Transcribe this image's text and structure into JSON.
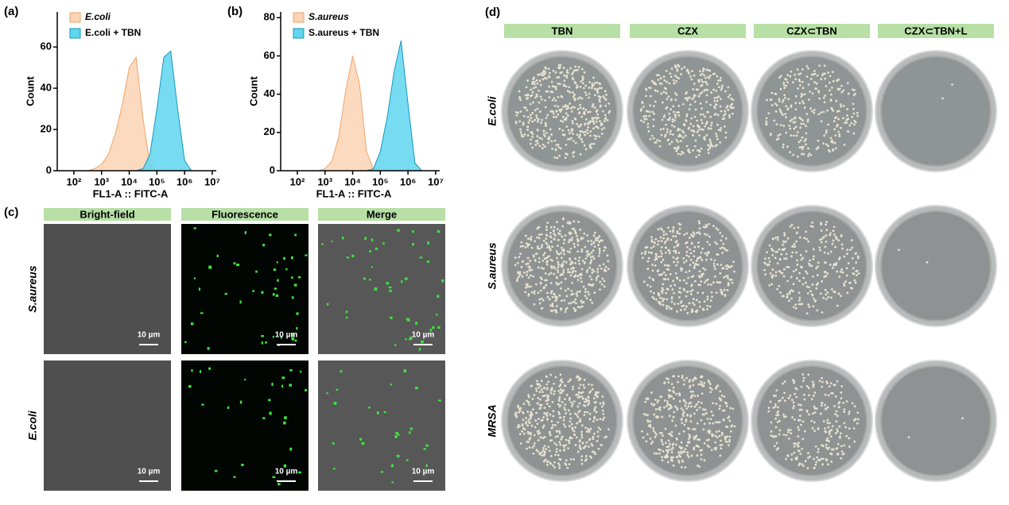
{
  "chart_data": [
    {
      "type": "area",
      "panel": "(a)",
      "xlabel": "FL1-A :: FITC-A",
      "ylabel": "Count",
      "xscale": "log",
      "legend": "upper left",
      "xlim": [
        25,
        14000000
      ],
      "ylim": [
        0,
        77
      ],
      "xticks": [
        {
          "value": 100,
          "label": "10²"
        },
        {
          "value": 1000,
          "label": "10³"
        },
        {
          "value": 10000,
          "label": "10⁴"
        },
        {
          "value": 100000,
          "label": "10⁵"
        },
        {
          "value": 1000000,
          "label": "10⁶"
        },
        {
          "value": 10000000,
          "label": "10⁷"
        }
      ],
      "yticks": [
        0,
        20,
        40,
        60
      ],
      "x": [
        316,
        562,
        1000,
        1778,
        3162,
        5623,
        10000,
        17783,
        31623,
        56234,
        100000,
        177828,
        316228,
        562341,
        1000000,
        1778279,
        3162278
      ],
      "series": [
        {
          "name": "E.coli",
          "color": "#fbd3b5",
          "edge": "#f0a469",
          "values": [
            0,
            1,
            3,
            8,
            18,
            32,
            50,
            55,
            25,
            3,
            0,
            0,
            0,
            0,
            0,
            0,
            0
          ]
        },
        {
          "name": "E.coli + TBN",
          "color": "#5fd5ee",
          "edge": "#1799bb",
          "values": [
            0,
            0,
            0,
            0,
            0,
            0,
            0,
            0,
            1,
            8,
            30,
            55,
            58,
            30,
            5,
            0,
            0
          ]
        }
      ]
    },
    {
      "type": "area",
      "panel": "(b)",
      "xlabel": "FL1-A :: FITC-A",
      "ylabel": "Count",
      "xscale": "log",
      "legend": "upper left",
      "xlim": [
        25,
        14000000
      ],
      "ylim": [
        0,
        83
      ],
      "xticks": [
        {
          "value": 100,
          "label": "10²"
        },
        {
          "value": 1000,
          "label": "10³"
        },
        {
          "value": 10000,
          "label": "10⁴"
        },
        {
          "value": 100000,
          "label": "10⁵"
        },
        {
          "value": 1000000,
          "label": "10⁶"
        },
        {
          "value": 10000000,
          "label": "10⁷"
        }
      ],
      "yticks": [
        0,
        20,
        40,
        60,
        80
      ],
      "x": [
        316,
        562,
        1000,
        1778,
        3162,
        5623,
        10000,
        17783,
        31623,
        56234,
        100000,
        177828,
        316228,
        562341,
        1000000,
        1778279,
        3162278
      ],
      "series": [
        {
          "name": "S.aureus",
          "color": "#fbd3b5",
          "edge": "#f0a469",
          "values": [
            0,
            0,
            1,
            5,
            18,
            42,
            60,
            45,
            10,
            1,
            0,
            0,
            0,
            0,
            0,
            0,
            0
          ]
        },
        {
          "name": "S.aureus + TBN",
          "color": "#5fd5ee",
          "edge": "#1799bb",
          "values": [
            0,
            0,
            0,
            0,
            0,
            0,
            0,
            0,
            0,
            1,
            10,
            28,
            52,
            68,
            35,
            4,
            0
          ]
        }
      ]
    }
  ],
  "panel_c": {
    "label": "(c)",
    "columns": [
      "Bright-field",
      "Fluorescence",
      "Merge"
    ],
    "rows": [
      "S.aureus",
      "E.coli"
    ],
    "scale_bar": "10 µm"
  },
  "panel_d": {
    "label": "(d)",
    "columns": [
      "TBN",
      "CZX",
      "CZX⊂TBN",
      "CZX⊂TBN+L"
    ],
    "rows": [
      "E.coli",
      "S.aureus",
      "MRSA"
    ]
  }
}
